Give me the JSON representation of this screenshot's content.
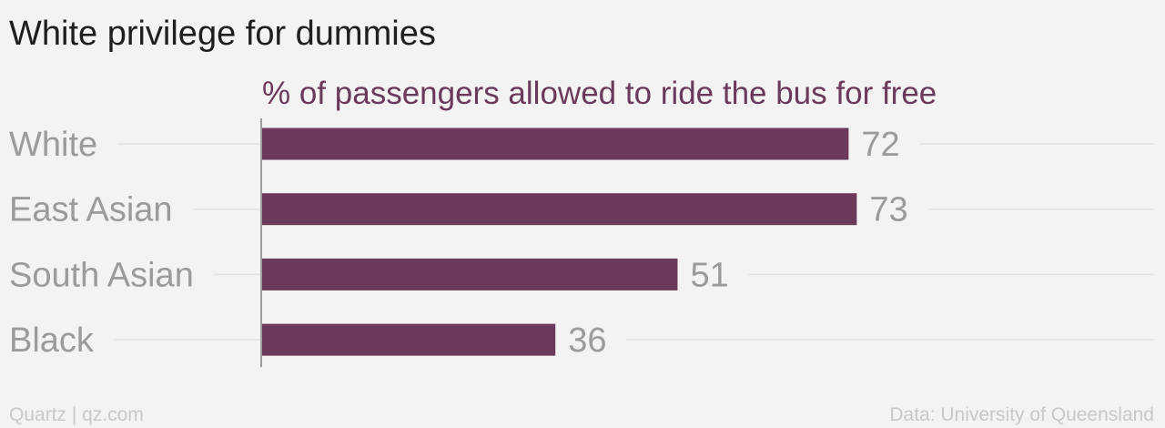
{
  "header": {
    "title": "White privilege for dummies"
  },
  "footer": {
    "source_left": "Quartz | qz.com",
    "source_right": "Data: University of Queensland"
  },
  "colors": {
    "bar": "#6b3a5b",
    "subtitle": "#6b3a5b",
    "category_label": "#9b9b9b",
    "value_label": "#9b9b9b",
    "gridline": "#e2e2e2",
    "axis": "#9e9e9e",
    "background": "#f3f3f3"
  },
  "chart_data": {
    "type": "bar",
    "orientation": "horizontal",
    "title": "% of passengers allowed to ride the bus for free",
    "categories": [
      "White",
      "East Asian",
      "South Asian",
      "Black"
    ],
    "values": [
      72,
      73,
      51,
      36
    ],
    "xlim": [
      0,
      110
    ],
    "xlabel": "",
    "ylabel": "",
    "grid": true,
    "legend": "none",
    "data_labels": true
  }
}
